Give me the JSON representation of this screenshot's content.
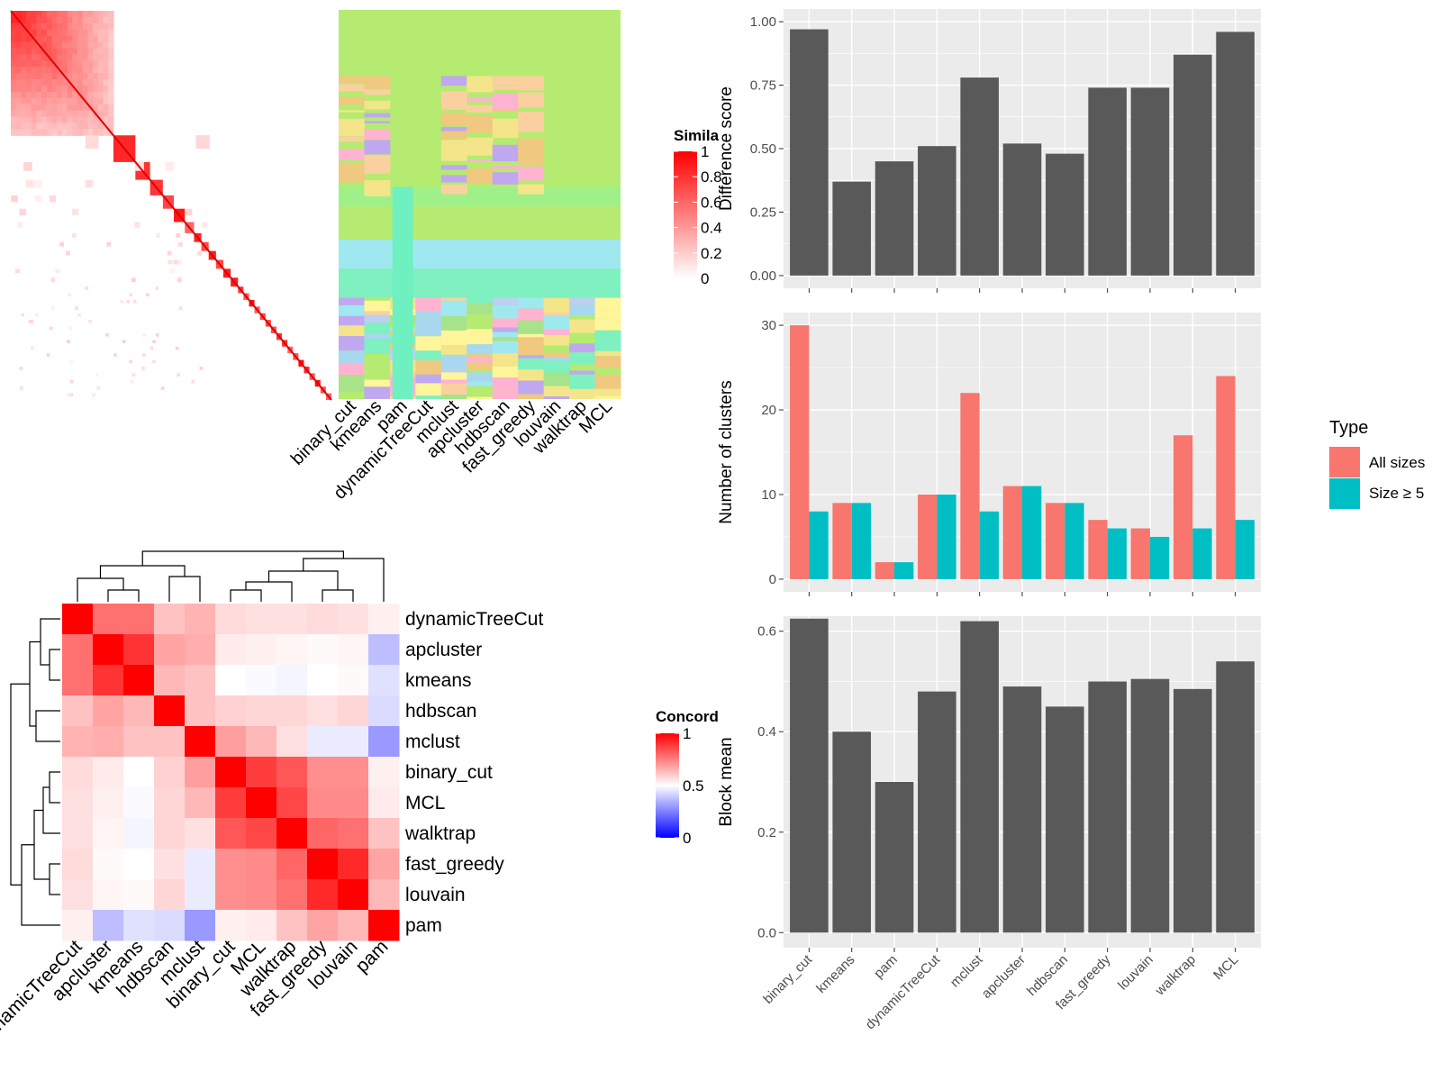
{
  "colors": {
    "panel_bg": "#EBEBEB",
    "grid": "#FFFFFF",
    "bar_gray": "#595959",
    "all_sizes": "#F8766D",
    "size_ge5": "#00BFC4",
    "sim_high": "#FF0000",
    "sim_low": "#FFFFFF",
    "conc_low": "#0000FF",
    "conc_mid": "#FFFFFF",
    "conc_high": "#FF0000"
  },
  "similarity_heatmap": {
    "legend_title": "Simila",
    "legend_ticks": [
      "1",
      "0.8",
      "0.6",
      "0.4",
      "0.2",
      "0"
    ],
    "methods": [
      "binary_cut",
      "kmeans",
      "pam",
      "dynamicTreeCut",
      "mclust",
      "apcluster",
      "hdbscan",
      "fast_greedy",
      "louvain",
      "walktrap",
      "MCL"
    ],
    "block_fractions": [
      0.28,
      0.06,
      0.04,
      0.035,
      0.03,
      0.03,
      0.025,
      0.02,
      0.02,
      0.02,
      0.02,
      0.02,
      0.02,
      0.015,
      0.015,
      0.015,
      0.015,
      0.015,
      0.015,
      0.015,
      0.015,
      0.015,
      0.015,
      0.015,
      0.015,
      0.015,
      0.015,
      0.015,
      0.015,
      0.015
    ]
  },
  "concordance_heatmap": {
    "legend_title": "Concord",
    "legend_ticks": [
      "1",
      "0.5",
      "0"
    ],
    "methods": [
      "dynamicTreeCut",
      "apcluster",
      "kmeans",
      "hdbscan",
      "mclust",
      "binary_cut",
      "MCL",
      "walktrap",
      "fast_greedy",
      "louvain",
      "pam"
    ],
    "matrix": [
      [
        1.0,
        0.78,
        0.78,
        0.62,
        0.65,
        0.57,
        0.56,
        0.56,
        0.57,
        0.56,
        0.53
      ],
      [
        0.78,
        1.0,
        0.9,
        0.68,
        0.66,
        0.54,
        0.53,
        0.52,
        0.51,
        0.52,
        0.37
      ],
      [
        0.78,
        0.9,
        1.0,
        0.64,
        0.62,
        0.5,
        0.49,
        0.48,
        0.5,
        0.51,
        0.44
      ],
      [
        0.62,
        0.68,
        0.64,
        1.0,
        0.62,
        0.59,
        0.58,
        0.58,
        0.56,
        0.58,
        0.43
      ],
      [
        0.65,
        0.66,
        0.62,
        0.62,
        1.0,
        0.69,
        0.64,
        0.56,
        0.46,
        0.46,
        0.3
      ],
      [
        0.57,
        0.54,
        0.5,
        0.59,
        0.69,
        1.0,
        0.88,
        0.83,
        0.72,
        0.72,
        0.53
      ],
      [
        0.56,
        0.53,
        0.49,
        0.58,
        0.64,
        0.88,
        1.0,
        0.86,
        0.73,
        0.73,
        0.54
      ],
      [
        0.56,
        0.52,
        0.48,
        0.58,
        0.56,
        0.83,
        0.86,
        1.0,
        0.8,
        0.78,
        0.62
      ],
      [
        0.57,
        0.51,
        0.5,
        0.56,
        0.46,
        0.72,
        0.73,
        0.8,
        1.0,
        0.92,
        0.68
      ],
      [
        0.56,
        0.52,
        0.51,
        0.58,
        0.46,
        0.72,
        0.73,
        0.78,
        0.92,
        1.0,
        0.64
      ],
      [
        0.53,
        0.37,
        0.44,
        0.43,
        0.3,
        0.53,
        0.54,
        0.62,
        0.68,
        0.64,
        1.0
      ]
    ]
  },
  "chart_data": [
    {
      "type": "bar",
      "categories": [
        "binary_cut",
        "kmeans",
        "pam",
        "dynamicTreeCut",
        "mclust",
        "apcluster",
        "hdbscan",
        "fast_greedy",
        "louvain",
        "walktrap",
        "MCL"
      ],
      "values": [
        0.97,
        0.37,
        0.45,
        0.51,
        0.78,
        0.52,
        0.48,
        0.74,
        0.74,
        0.87,
        0.96
      ],
      "ylabel": "Difference score",
      "ylim": [
        0,
        1.0
      ],
      "yticks": [
        "0.00",
        "0.25",
        "0.50",
        "0.75",
        "1.00"
      ],
      "ytick_values": [
        0,
        0.25,
        0.5,
        0.75,
        1.0
      ]
    },
    {
      "type": "bar",
      "categories": [
        "binary_cut",
        "kmeans",
        "pam",
        "dynamicTreeCut",
        "mclust",
        "apcluster",
        "hdbscan",
        "fast_greedy",
        "louvain",
        "walktrap",
        "MCL"
      ],
      "series": [
        {
          "name": "All sizes",
          "values": [
            30,
            9,
            2,
            10,
            22,
            11,
            9,
            7,
            6,
            17,
            24
          ]
        },
        {
          "name": "Size ≥ 5",
          "values": [
            8,
            9,
            2,
            10,
            8,
            11,
            9,
            6,
            5,
            6,
            7
          ]
        }
      ],
      "ylabel": "Number of clusters",
      "ylim": [
        0,
        30
      ],
      "yticks": [
        "0",
        "10",
        "20",
        "30"
      ],
      "ytick_values": [
        0,
        10,
        20,
        30
      ],
      "legend_title": "Type",
      "legend_position": "right"
    },
    {
      "type": "bar",
      "categories": [
        "binary_cut",
        "kmeans",
        "pam",
        "dynamicTreeCut",
        "mclust",
        "apcluster",
        "hdbscan",
        "fast_greedy",
        "louvain",
        "walktrap",
        "MCL"
      ],
      "values": [
        0.625,
        0.4,
        0.3,
        0.48,
        0.62,
        0.49,
        0.45,
        0.5,
        0.505,
        0.485,
        0.54
      ],
      "ylabel": "Block mean",
      "ylim": [
        0,
        0.6
      ],
      "yticks": [
        "0.0",
        "0.2",
        "0.4",
        "0.6"
      ],
      "ytick_values": [
        0,
        0.2,
        0.4,
        0.6
      ]
    }
  ]
}
